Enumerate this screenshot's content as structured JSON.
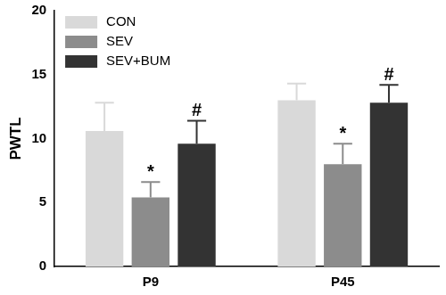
{
  "chart_data": {
    "type": "bar",
    "y_label": "PWTL",
    "categories": [
      "P9",
      "P45"
    ],
    "series": [
      {
        "name": "CON",
        "color": "#d9d9d9",
        "values": [
          10.6,
          13.0
        ],
        "errors": [
          2.2,
          1.3
        ]
      },
      {
        "name": "SEV",
        "color": "#8c8c8c",
        "values": [
          5.4,
          8.0
        ],
        "errors": [
          1.2,
          1.6
        ]
      },
      {
        "name": "SEV+BUM",
        "color": "#333333",
        "values": [
          9.6,
          12.8
        ],
        "errors": [
          1.8,
          1.4
        ]
      }
    ],
    "annotations": [
      {
        "series": "SEV",
        "category": "P9",
        "text": "*"
      },
      {
        "series": "SEV+BUM",
        "category": "P9",
        "text": "#"
      },
      {
        "series": "SEV",
        "category": "P45",
        "text": "*"
      },
      {
        "series": "SEV+BUM",
        "category": "P45",
        "text": "#"
      }
    ],
    "ylim": [
      0,
      20
    ],
    "yticks": [
      0,
      5,
      10,
      15,
      20
    ],
    "grid": false,
    "legend": "top-left"
  }
}
